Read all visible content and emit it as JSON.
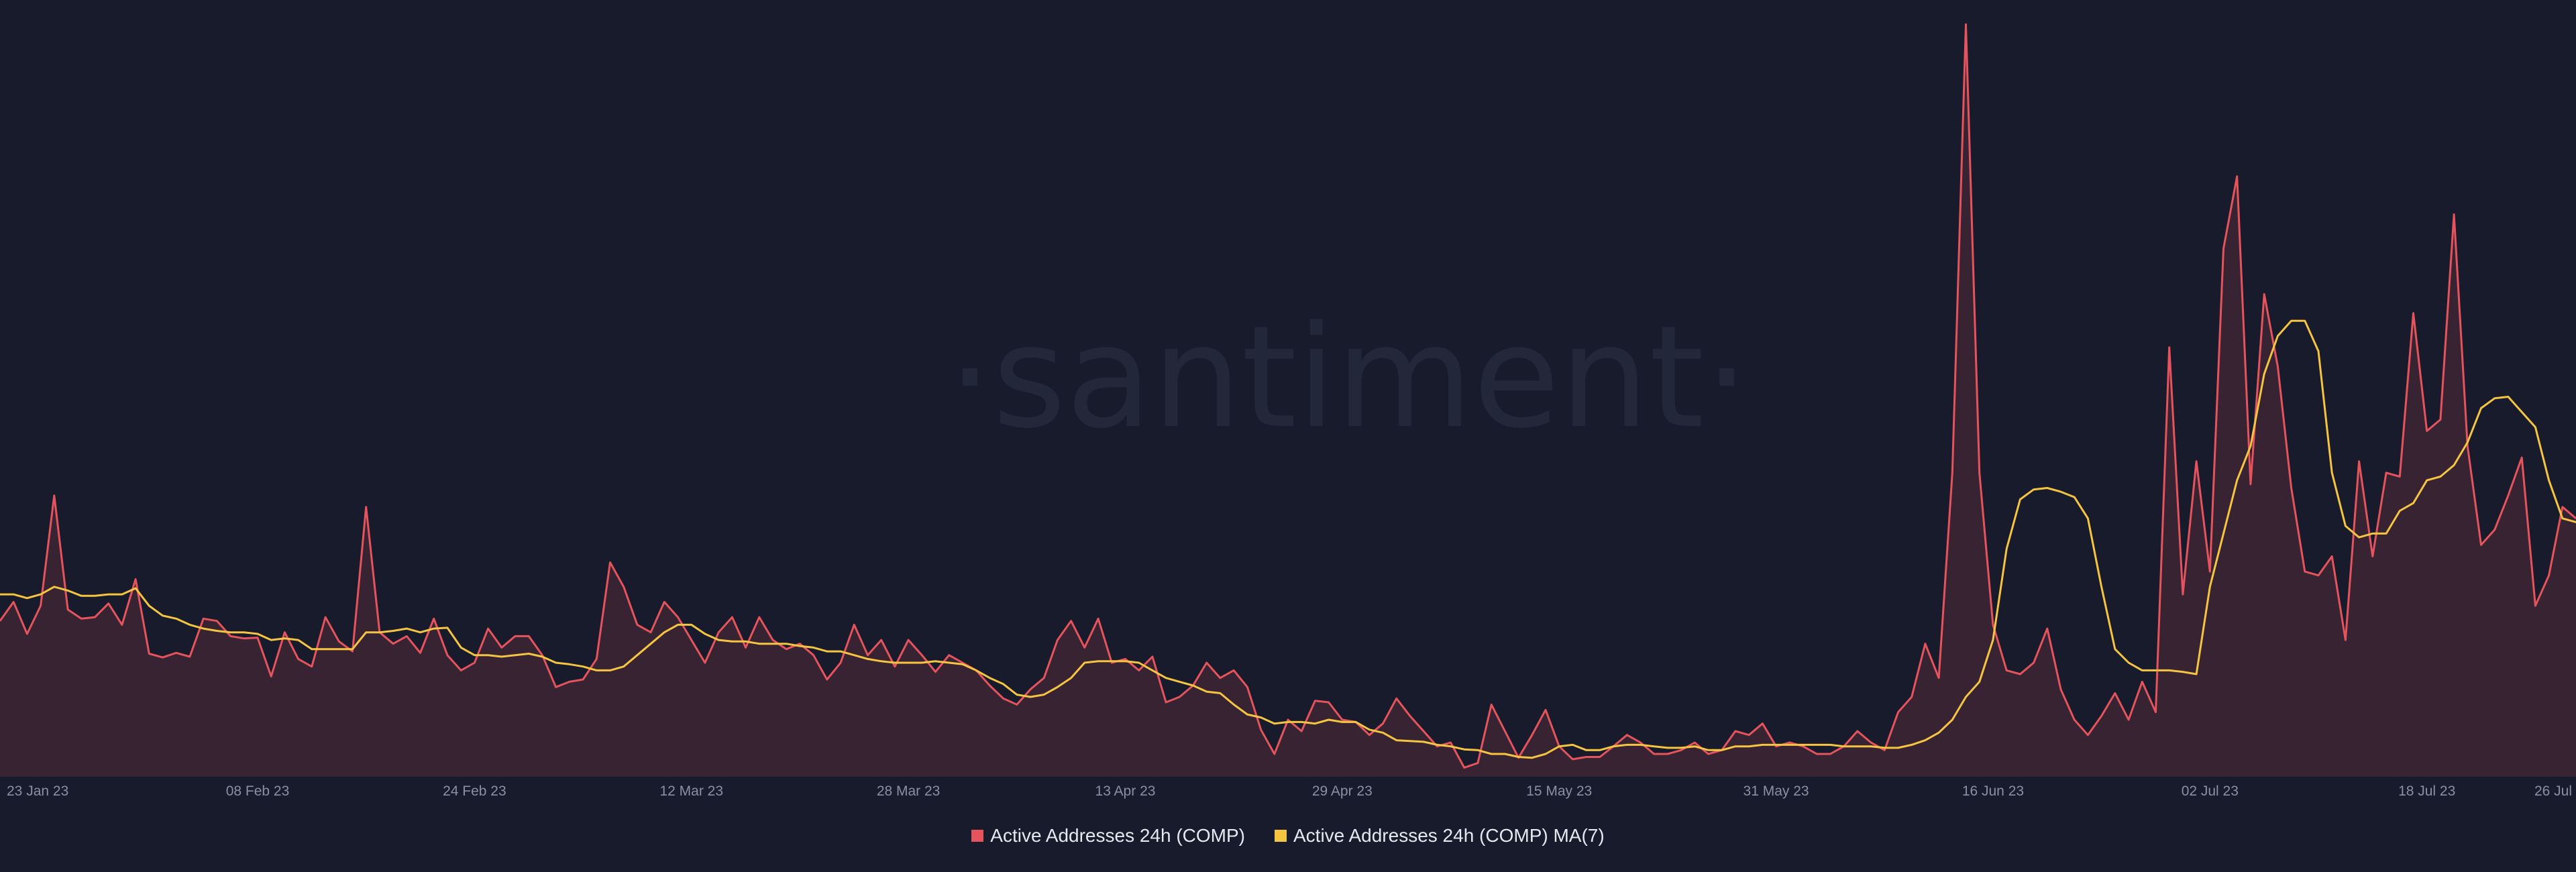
{
  "watermark": "·santiment·",
  "colors": {
    "background": "#181b2b",
    "series_raw": "#e5545c",
    "series_ma": "#f5c542",
    "area_fill": "#3b2532",
    "axis_text": "#8a8fa5",
    "watermark": "#23273a"
  },
  "legend": {
    "placement": "bottom-center",
    "items": [
      {
        "label": "Active Addresses 24h (COMP)",
        "color": "#e5545c"
      },
      {
        "label": "Active Addresses 24h (COMP) MA(7)",
        "color": "#f5c542"
      }
    ]
  },
  "chart_data": {
    "type": "line",
    "title": "",
    "xlabel": "",
    "ylabel": "",
    "grid": false,
    "start_date": "2023-01-20",
    "x_ticks": [
      "23 Jan 23",
      "08 Feb 23",
      "24 Feb 23",
      "12 Mar 23",
      "28 Mar 23",
      "13 Apr 23",
      "29 Apr 23",
      "15 May 23",
      "31 May 23",
      "16 Jun 23",
      "02 Jul 23",
      "18 Jul 23",
      "26 Jul"
    ],
    "ylim": [
      0,
      1000
    ],
    "series": [
      {
        "name": "Active Addresses 24h (COMP)",
        "values": [
          205,
          230,
          188,
          225,
          370,
          220,
          208,
          210,
          228,
          200,
          260,
          162,
          157,
          163,
          158,
          208,
          205,
          185,
          182,
          183,
          132,
          190,
          155,
          145,
          210,
          178,
          165,
          355,
          190,
          175,
          185,
          163,
          208,
          160,
          140,
          150,
          195,
          170,
          185,
          185,
          160,
          118,
          125,
          128,
          155,
          282,
          250,
          200,
          190,
          230,
          210,
          180,
          150,
          190,
          210,
          170,
          210,
          180,
          168,
          175,
          160,
          128,
          150,
          200,
          160,
          180,
          145,
          180,
          160,
          138,
          160,
          150,
          140,
          120,
          103,
          95,
          115,
          130,
          180,
          205,
          170,
          208,
          150,
          155,
          140,
          158,
          98,
          105,
          120,
          150,
          130,
          140,
          118,
          62,
          30,
          75,
          60,
          100,
          98,
          75,
          72,
          55,
          70,
          103,
          80,
          60,
          40,
          45,
          12,
          18,
          95,
          60,
          25,
          55,
          88,
          40,
          23,
          26,
          26,
          40,
          55,
          45,
          30,
          30,
          35,
          45,
          30,
          35,
          60,
          55,
          70,
          40,
          45,
          40,
          30,
          30,
          40,
          60,
          45,
          35,
          85,
          105,
          175,
          130,
          400,
          990,
          400,
          200,
          140,
          135,
          150,
          195,
          115,
          75,
          55,
          80,
          110,
          75,
          125,
          85,
          565,
          240,
          415,
          270,
          695,
          790,
          385,
          635,
          540,
          380,
          270,
          265,
          290,
          180,
          415,
          290,
          400,
          395,
          610,
          455,
          470,
          740,
          435,
          305,
          325,
          370,
          420,
          225,
          265,
          355,
          340
        ],
        "color": "#e5545c"
      },
      {
        "name": "Active Addresses 24h (COMP) MA(7)",
        "values": [
          240,
          240,
          235,
          240,
          250,
          245,
          238,
          238,
          240,
          240,
          248,
          225,
          212,
          208,
          200,
          195,
          192,
          190,
          190,
          188,
          180,
          182,
          180,
          168,
          168,
          168,
          168,
          190,
          190,
          192,
          195,
          190,
          195,
          196,
          170,
          160,
          160,
          158,
          160,
          162,
          158,
          150,
          148,
          145,
          140,
          140,
          145,
          160,
          175,
          190,
          200,
          200,
          188,
          180,
          178,
          178,
          175,
          175,
          175,
          172,
          170,
          165,
          165,
          160,
          155,
          152,
          150,
          150,
          150,
          152,
          150,
          148,
          140,
          130,
          122,
          108,
          105,
          108,
          118,
          130,
          150,
          152,
          152,
          152,
          150,
          140,
          130,
          125,
          120,
          112,
          110,
          95,
          82,
          78,
          70,
          72,
          72,
          70,
          75,
          72,
          72,
          62,
          58,
          48,
          47,
          46,
          42,
          40,
          36,
          35,
          30,
          30,
          26,
          25,
          30,
          40,
          42,
          35,
          35,
          40,
          42,
          42,
          40,
          38,
          38,
          40,
          35,
          35,
          40,
          40,
          42,
          42,
          42,
          42,
          42,
          42,
          40,
          40,
          40,
          38,
          38,
          42,
          48,
          58,
          75,
          105,
          125,
          180,
          300,
          365,
          378,
          380,
          375,
          368,
          340,
          250,
          168,
          150,
          140,
          140,
          140,
          138,
          135,
          250,
          320,
          390,
          435,
          530,
          580,
          600,
          600,
          560,
          400,
          330,
          315,
          320,
          320,
          350,
          360,
          390,
          395,
          410,
          440,
          485,
          498,
          500,
          480,
          460,
          390,
          340,
          335,
          335
        ],
        "color": "#f5c542"
      }
    ]
  }
}
